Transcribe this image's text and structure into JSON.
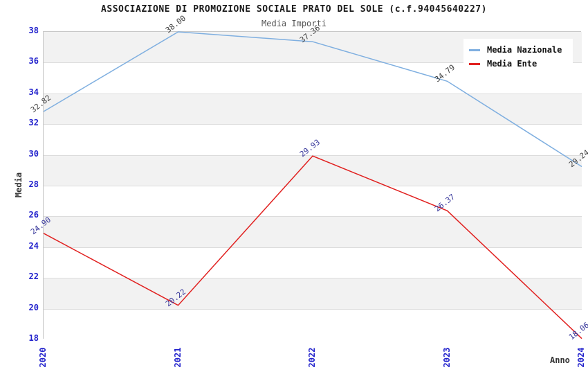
{
  "title": "ASSOCIAZIONE DI PROMOZIONE SOCIALE PRATO DEL SOLE (c.f.94045640227)",
  "subtitle": "Media Importi",
  "axes": {
    "y_label": "Media",
    "x_label": "Anno",
    "y_ticks": [
      38,
      36,
      34,
      32,
      30,
      28,
      26,
      24,
      22,
      20,
      18
    ],
    "x_ticks": [
      "2020",
      "2021",
      "2022",
      "2023",
      "2024"
    ]
  },
  "legend": [
    {
      "label": "Media Nazionale",
      "color": "#7fafe0"
    },
    {
      "label": "Media Ente",
      "color": "#e12120"
    }
  ],
  "colors": {
    "tick_label": "#2222cc",
    "band_gray": "#f2f2f2",
    "band_white": "#ffffff",
    "gridline": "#dcdcdc",
    "plot_border": "#c8c8c8",
    "title_text": "#1a1a1a",
    "subtitle_text": "#555555"
  },
  "chart_data": {
    "type": "line",
    "title": "ASSOCIAZIONE DI PROMOZIONE SOCIALE PRATO DEL SOLE (c.f.94045640227)",
    "subtitle": "Media Importi",
    "xlabel": "Anno",
    "ylabel": "Media",
    "categories": [
      "2020",
      "2021",
      "2022",
      "2023",
      "2024"
    ],
    "series": [
      {
        "name": "Media Nazionale",
        "color": "#7fafe0",
        "label_color": "#3c3c3c",
        "values": [
          32.82,
          38.0,
          37.36,
          34.79,
          29.24
        ]
      },
      {
        "name": "Media Ente",
        "color": "#e12120",
        "label_color": "#333399",
        "values": [
          24.9,
          20.22,
          29.93,
          26.37,
          18.06
        ]
      }
    ],
    "ylim": [
      18,
      38
    ],
    "ytick_step": 2,
    "grid": "horizontal-bands-alternating",
    "legend_position": "top-right",
    "point_label_decimals": 2
  }
}
